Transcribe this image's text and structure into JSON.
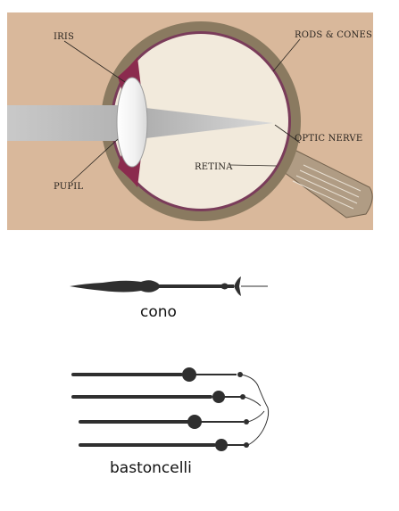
{
  "eye_diagram": {
    "labels": {
      "iris": "IRIS",
      "rods_cones": "RODS & CONES",
      "optic_nerve": "OPTIC NERVE",
      "retina": "RETINA",
      "pupil": "PUPIL"
    },
    "colors": {
      "background": "#d9b89b",
      "eyeball_wall": "#8a7a60",
      "choroid_line": "#7a3c5a",
      "interior": "#f2eadc",
      "light_beam": "#bfbfbf",
      "iris": "#8b2b4e"
    }
  },
  "cone_diagram": {
    "caption": "cono"
  },
  "rods_diagram": {
    "caption": "bastoncelli"
  }
}
